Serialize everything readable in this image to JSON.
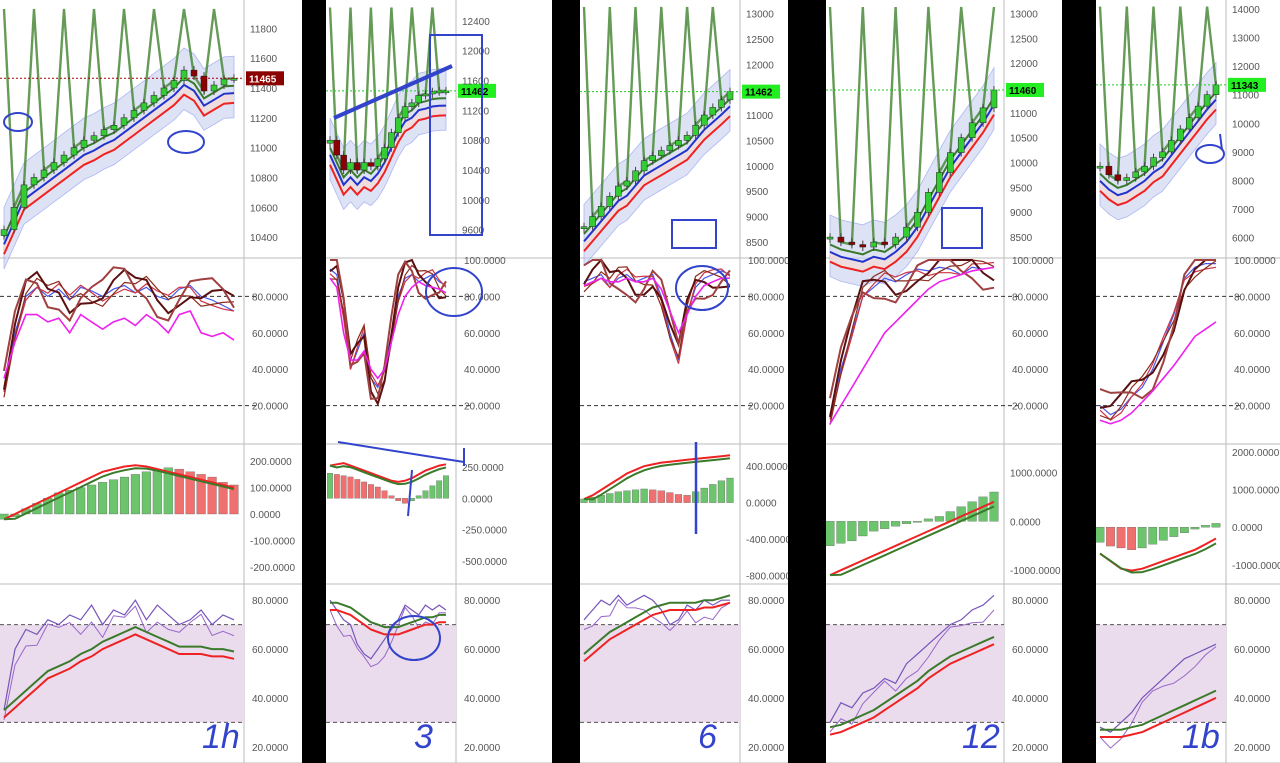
{
  "colors": {
    "green_candle": "#33cc33",
    "red_candle": "#8b0000",
    "ema_blue": "#2233cc",
    "ema_red": "#ee2222",
    "ema_green": "#3a7a2a",
    "band_fill": "#c8cff0",
    "cloud_fill": "#f3dcd8",
    "rsi_zone": "#eadcec",
    "annotation": "#3344cc",
    "price_tag_dark": "#8b0000",
    "price_tag_green": "#22ee22"
  },
  "chart_data": [
    {
      "type": "line",
      "timeframe_label": "1h",
      "last_price": "11465",
      "last_tag_color": "dark",
      "price_ticks": [
        "11800",
        "11600",
        "11400",
        "11200",
        "11000",
        "10800",
        "10600",
        "10400"
      ],
      "price_range": [
        10300,
        11950
      ],
      "close": [
        10450,
        10600,
        10750,
        10800,
        10850,
        10900,
        10950,
        11000,
        11050,
        11080,
        11120,
        11150,
        11200,
        11250,
        11300,
        11350,
        11400,
        11450,
        11520,
        11480,
        11380,
        11420,
        11460,
        11465
      ],
      "stoch_ticks": [
        "80.0000",
        "60.0000",
        "40.0000",
        "20.0000"
      ],
      "stoch_range": [
        0,
        100
      ],
      "stoch": [
        30,
        60,
        80,
        85,
        80,
        84,
        78,
        85,
        83,
        80,
        84,
        86,
        82,
        85,
        80,
        78,
        84,
        86,
        80,
        78,
        75,
        72
      ],
      "stoch_slow": [
        35,
        55,
        70,
        70,
        66,
        68,
        60,
        70,
        66,
        62,
        66,
        68,
        64,
        70,
        66,
        60,
        70,
        72,
        60,
        58,
        60,
        56
      ],
      "macd_ticks": [
        "200.0000",
        "100.0000",
        "0.0000",
        "-100.0000",
        "-200.0000"
      ],
      "macd_range": [
        -250,
        250
      ],
      "macd_hist": [
        -20,
        -10,
        20,
        40,
        60,
        80,
        90,
        100,
        110,
        120,
        130,
        140,
        150,
        160,
        170,
        175,
        170,
        160,
        150,
        140,
        120,
        110
      ],
      "macd_line": [
        -20,
        0,
        20,
        40,
        60,
        80,
        100,
        120,
        140,
        160,
        170,
        180,
        185,
        180,
        170,
        160,
        150,
        140,
        130,
        120,
        110,
        100
      ],
      "rsi_ticks": [
        "80.0000",
        "60.0000",
        "40.0000",
        "20.0000"
      ],
      "rsi_range": [
        15,
        85
      ],
      "rsi": [
        35,
        60,
        68,
        66,
        72,
        70,
        74,
        72,
        78,
        70,
        76,
        74,
        80,
        72,
        78,
        74,
        70,
        72,
        76,
        70,
        74,
        72
      ],
      "rsi_ma": [
        32,
        36,
        40,
        44,
        48,
        50,
        52,
        55,
        57,
        60,
        62,
        64,
        66,
        64,
        62,
        60,
        58,
        58,
        58,
        57,
        57,
        56
      ]
    },
    {
      "type": "line",
      "timeframe_label": "3",
      "last_price": "11462",
      "last_tag_color": "green",
      "price_ticks": [
        "12400",
        "12000",
        "11600",
        "11200",
        "10800",
        "10400",
        "10000",
        "9600"
      ],
      "price_range": [
        9300,
        12600
      ],
      "close": [
        10800,
        10600,
        10400,
        10500,
        10400,
        10500,
        10450,
        10550,
        10700,
        10900,
        11100,
        11250,
        11300,
        11400,
        11420,
        11450,
        11460,
        11462
      ],
      "stoch_ticks": [
        "100.0000",
        "80.0000",
        "60.0000",
        "40.0000",
        "20.0000"
      ],
      "stoch_range": [
        0,
        100
      ],
      "stoch": [
        95,
        92,
        70,
        40,
        50,
        60,
        35,
        30,
        40,
        60,
        80,
        90,
        92,
        88,
        90,
        92,
        88,
        86
      ],
      "stoch_slow": [
        90,
        85,
        60,
        45,
        45,
        50,
        40,
        35,
        40,
        55,
        70,
        80,
        85,
        88,
        86,
        85,
        84,
        82
      ],
      "macd_ticks": [
        "250.0000",
        "0.0000",
        "-250.0000",
        "-500.0000"
      ],
      "macd_range": [
        -650,
        400
      ],
      "macd_hist": [
        200,
        190,
        180,
        170,
        150,
        130,
        110,
        90,
        60,
        20,
        -20,
        -40,
        -20,
        20,
        60,
        100,
        140,
        180
      ],
      "macd_line": [
        260,
        270,
        280,
        260,
        240,
        220,
        200,
        180,
        160,
        140,
        130,
        140,
        160,
        190,
        220,
        240,
        260,
        270
      ],
      "rsi_ticks": [
        "80.0000",
        "60.0000",
        "40.0000",
        "20.0000"
      ],
      "rsi_range": [
        15,
        85
      ],
      "rsi": [
        80,
        76,
        72,
        70,
        62,
        58,
        56,
        60,
        64,
        68,
        72,
        78,
        76,
        74,
        78,
        76,
        78,
        76
      ],
      "rsi_ma": [
        76,
        76,
        75,
        74,
        72,
        70,
        68,
        67,
        66,
        66,
        66,
        67,
        68,
        69,
        70,
        70,
        71,
        71
      ]
    },
    {
      "type": "line",
      "timeframe_label": "6",
      "last_price": "11462",
      "last_tag_color": "green",
      "price_ticks": [
        "13000",
        "12500",
        "12000",
        "11500",
        "11000",
        "10500",
        "10000",
        "9500",
        "9000",
        "8500"
      ],
      "price_range": [
        8300,
        13150
      ],
      "close": [
        8800,
        9000,
        9200,
        9400,
        9600,
        9700,
        9900,
        10100,
        10200,
        10300,
        10400,
        10500,
        10600,
        10800,
        11000,
        11150,
        11300,
        11462
      ],
      "stoch_ticks": [
        "100.0000",
        "80.0000",
        "60.0000",
        "40.0000",
        "20.0000"
      ],
      "stoch_range": [
        0,
        100
      ],
      "stoch": [
        88,
        90,
        92,
        85,
        90,
        92,
        88,
        90,
        92,
        80,
        60,
        45,
        70,
        85,
        90,
        92,
        94,
        92
      ],
      "stoch_slow": [
        86,
        88,
        90,
        88,
        88,
        90,
        88,
        88,
        90,
        84,
        72,
        60,
        70,
        80,
        86,
        88,
        90,
        90
      ],
      "macd_ticks": [
        "400.0000",
        "0.0000",
        "-400.0000",
        "-800.0000"
      ],
      "macd_range": [
        -850,
        600
      ],
      "macd_hist": [
        40,
        60,
        80,
        100,
        120,
        130,
        140,
        150,
        140,
        130,
        110,
        90,
        80,
        120,
        160,
        200,
        240,
        270
      ],
      "macd_line": [
        40,
        80,
        140,
        200,
        260,
        320,
        360,
        400,
        420,
        440,
        450,
        460,
        470,
        480,
        490,
        500,
        510,
        520
      ],
      "rsi_ticks": [
        "80.0000",
        "60.0000",
        "40.0000",
        "20.0000"
      ],
      "rsi_range": [
        15,
        85
      ],
      "rsi": [
        72,
        76,
        80,
        78,
        82,
        78,
        80,
        82,
        80,
        76,
        70,
        72,
        78,
        76,
        80,
        78,
        80,
        80
      ],
      "rsi_ma": [
        55,
        58,
        61,
        64,
        66,
        68,
        70,
        72,
        74,
        75,
        76,
        76,
        76,
        76,
        77,
        77,
        78,
        79
      ]
    },
    {
      "type": "line",
      "timeframe_label": "12",
      "last_price": "11460",
      "last_tag_color": "green",
      "price_ticks": [
        "13000",
        "12500",
        "12000",
        "11500",
        "11000",
        "10500",
        "10000",
        "9500",
        "9000",
        "8500"
      ],
      "price_range": [
        8200,
        13150
      ],
      "close": [
        8500,
        8400,
        8350,
        8300,
        8400,
        8350,
        8500,
        8700,
        9000,
        9400,
        9800,
        10200,
        10500,
        10800,
        11100,
        11460
      ],
      "stoch_ticks": [
        "100.0000",
        "80.0000",
        "60.0000",
        "40.0000",
        "20.0000"
      ],
      "stoch_range": [
        0,
        100
      ],
      "stoch": [
        15,
        40,
        60,
        80,
        85,
        90,
        88,
        92,
        95,
        94,
        96,
        95,
        92,
        96,
        95,
        96
      ],
      "stoch_slow": [
        10,
        20,
        30,
        40,
        50,
        60,
        66,
        72,
        78,
        84,
        88,
        90,
        92,
        94,
        95,
        96
      ],
      "macd_ticks": [
        "1000.0000",
        "0.0000",
        "-1000.0000"
      ],
      "macd_range": [
        -1200,
        1500
      ],
      "macd_hist": [
        -500,
        -450,
        -400,
        -300,
        -200,
        -150,
        -100,
        -50,
        0,
        50,
        100,
        200,
        300,
        400,
        500,
        600
      ],
      "macd_line": [
        -1100,
        -1000,
        -900,
        -800,
        -700,
        -600,
        -500,
        -400,
        -300,
        -200,
        -100,
        0,
        100,
        200,
        300,
        400
      ],
      "rsi_ticks": [
        "80.0000",
        "60.0000",
        "40.0000",
        "20.0000"
      ],
      "rsi_range": [
        15,
        85
      ],
      "rsi": [
        30,
        38,
        36,
        42,
        44,
        48,
        46,
        54,
        58,
        62,
        66,
        70,
        72,
        76,
        78,
        82
      ],
      "rsi_ma": [
        25,
        26,
        28,
        30,
        32,
        35,
        38,
        41,
        44,
        48,
        51,
        54,
        56,
        58,
        60,
        62
      ]
    },
    {
      "type": "line",
      "timeframe_label": "1b",
      "last_price": "11343",
      "last_tag_color": "green",
      "price_ticks": [
        "14000",
        "13000",
        "12000",
        "11000",
        "10000",
        "9000",
        "8000",
        "7000",
        "6000"
      ],
      "price_range": [
        5500,
        14100
      ],
      "close": [
        8500,
        8200,
        8000,
        8100,
        8300,
        8500,
        8800,
        9000,
        9400,
        9800,
        10200,
        10600,
        11000,
        11343
      ],
      "stoch_ticks": [
        "100.0000",
        "80.0000",
        "60.0000",
        "40.0000",
        "20.0000"
      ],
      "stoch_range": [
        0,
        100
      ],
      "stoch": [
        20,
        15,
        18,
        25,
        30,
        40,
        55,
        70,
        90,
        96,
        98,
        98
      ],
      "stoch_slow": [
        12,
        10,
        12,
        16,
        22,
        28,
        35,
        42,
        50,
        58,
        62,
        66
      ],
      "macd_ticks": [
        "2000.0000",
        "1000.0000",
        "0.0000",
        "-1000.0000"
      ],
      "macd_range": [
        -1400,
        2100
      ],
      "macd_hist": [
        -400,
        -500,
        -550,
        -600,
        -550,
        -450,
        -350,
        -250,
        -150,
        -50,
        50,
        100
      ],
      "macd_line": [
        -700,
        -900,
        -1100,
        -1150,
        -1100,
        -1000,
        -900,
        -800,
        -700,
        -600,
        -450,
        -300
      ],
      "rsi_ticks": [
        "80.0000",
        "60.0000",
        "40.0000",
        "20.0000"
      ],
      "rsi_range": [
        15,
        85
      ],
      "rsi": [
        28,
        26,
        30,
        34,
        40,
        44,
        48,
        52,
        56,
        58,
        60,
        62
      ],
      "rsi_ma": [
        24,
        24,
        24,
        25,
        26,
        28,
        30,
        32,
        34,
        36,
        38,
        40
      ]
    }
  ]
}
